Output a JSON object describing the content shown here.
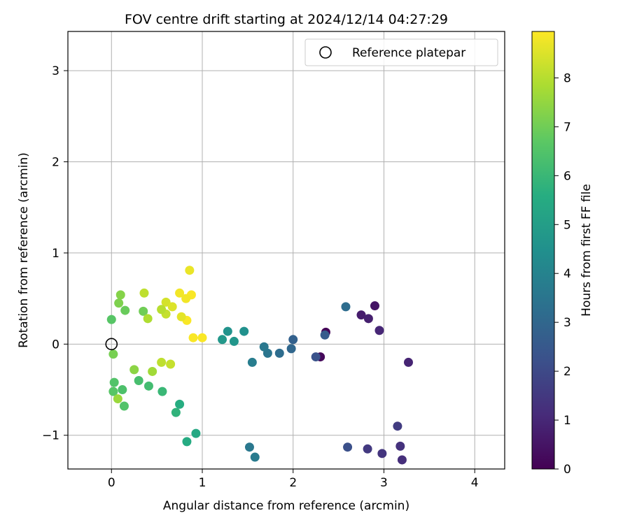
{
  "chart_data": {
    "type": "scatter",
    "title": "FOV centre drift starting at 2024/12/14 04:27:29",
    "xlabel": "Angular distance from reference (arcmin)",
    "ylabel": "Rotation from reference (arcmin)",
    "xlim": [
      -0.48,
      4.33
    ],
    "ylim": [
      -1.37,
      3.43
    ],
    "x_ticks": [
      0,
      1,
      2,
      3,
      4
    ],
    "x_tick_labels": [
      "0",
      "1",
      "2",
      "3",
      "4"
    ],
    "y_ticks": [
      -1,
      0,
      1,
      2,
      3
    ],
    "y_tick_labels": [
      "−1",
      "0",
      "1",
      "2",
      "3"
    ],
    "grid": true,
    "legend": {
      "position": "top-right",
      "entries": [
        "Reference platepar"
      ]
    },
    "reference_point": {
      "x": 0,
      "y": 0
    },
    "colorbar": {
      "label": "Hours from first FF file",
      "range": [
        0,
        8.95
      ],
      "ticks": [
        0,
        1,
        2,
        3,
        4,
        5,
        6,
        7,
        8
      ],
      "tick_labels": [
        "0",
        "1",
        "2",
        "3",
        "4",
        "5",
        "6",
        "7",
        "8"
      ],
      "colormap": "viridis"
    },
    "series": [
      {
        "points": [
          [
            2.36,
            0.13,
            0.1
          ],
          [
            2.3,
            -0.14,
            0.2
          ],
          [
            2.9,
            0.42,
            0.5
          ],
          [
            2.75,
            0.32,
            0.7
          ],
          [
            2.83,
            0.28,
            0.8
          ],
          [
            3.27,
            -0.2,
            0.9
          ],
          [
            2.95,
            0.15,
            1.0
          ],
          [
            3.2,
            -1.27,
            1.2
          ],
          [
            3.18,
            -1.12,
            1.3
          ],
          [
            2.98,
            -1.2,
            1.4
          ],
          [
            2.82,
            -1.15,
            1.5
          ],
          [
            3.15,
            -0.9,
            1.6
          ],
          [
            2.6,
            -1.13,
            2.2
          ],
          [
            2.58,
            0.41,
            3.2
          ],
          [
            2.35,
            0.1,
            2.6
          ],
          [
            2.25,
            -0.14,
            2.3
          ],
          [
            2.0,
            0.05,
            2.8
          ],
          [
            1.98,
            -0.05,
            3.0
          ],
          [
            1.85,
            -0.1,
            3.2
          ],
          [
            1.72,
            -0.1,
            3.5
          ],
          [
            1.68,
            -0.03,
            3.6
          ],
          [
            1.55,
            -0.2,
            3.8
          ],
          [
            1.52,
            -1.13,
            3.6
          ],
          [
            1.58,
            -1.24,
            3.7
          ],
          [
            1.28,
            0.14,
            4.6
          ],
          [
            1.46,
            0.14,
            4.5
          ],
          [
            1.35,
            0.03,
            4.7
          ],
          [
            1.22,
            0.05,
            4.8
          ],
          [
            0.93,
            -0.98,
            5.4
          ],
          [
            0.83,
            -1.07,
            5.5
          ],
          [
            0.71,
            -0.75,
            5.8
          ],
          [
            0.75,
            -0.66,
            5.6
          ],
          [
            0.56,
            -0.52,
            6.0
          ],
          [
            0.41,
            -0.46,
            6.2
          ],
          [
            0.3,
            -0.4,
            6.3
          ],
          [
            0.14,
            -0.68,
            6.5
          ],
          [
            0.12,
            -0.5,
            6.4
          ],
          [
            0.02,
            -0.52,
            6.6
          ],
          [
            0.03,
            -0.42,
            6.5
          ],
          [
            0.0,
            0.27,
            6.6
          ],
          [
            0.15,
            0.37,
            6.9
          ],
          [
            0.35,
            0.36,
            7.0
          ],
          [
            0.02,
            -0.11,
            7.1
          ],
          [
            0.1,
            0.54,
            7.3
          ],
          [
            0.07,
            -0.6,
            7.6
          ],
          [
            0.36,
            0.56,
            8.1
          ],
          [
            0.6,
            0.46,
            8.4
          ],
          [
            0.67,
            0.41,
            8.5
          ],
          [
            0.86,
            0.81,
            8.7
          ],
          [
            0.75,
            0.56,
            8.8
          ],
          [
            0.88,
            0.54,
            8.9
          ],
          [
            0.82,
            0.5,
            8.8
          ],
          [
            0.83,
            0.26,
            8.9
          ],
          [
            0.9,
            0.07,
            8.9
          ],
          [
            1.0,
            0.07,
            8.9
          ],
          [
            0.77,
            0.3,
            8.6
          ],
          [
            0.6,
            0.33,
            8.2
          ],
          [
            0.55,
            0.38,
            8.0
          ],
          [
            0.4,
            0.28,
            7.9
          ],
          [
            0.55,
            -0.2,
            8.1
          ],
          [
            0.65,
            -0.22,
            8.2
          ],
          [
            0.45,
            -0.3,
            7.7
          ],
          [
            0.25,
            -0.28,
            7.4
          ],
          [
            0.08,
            0.45,
            7.2
          ]
        ]
      }
    ]
  }
}
